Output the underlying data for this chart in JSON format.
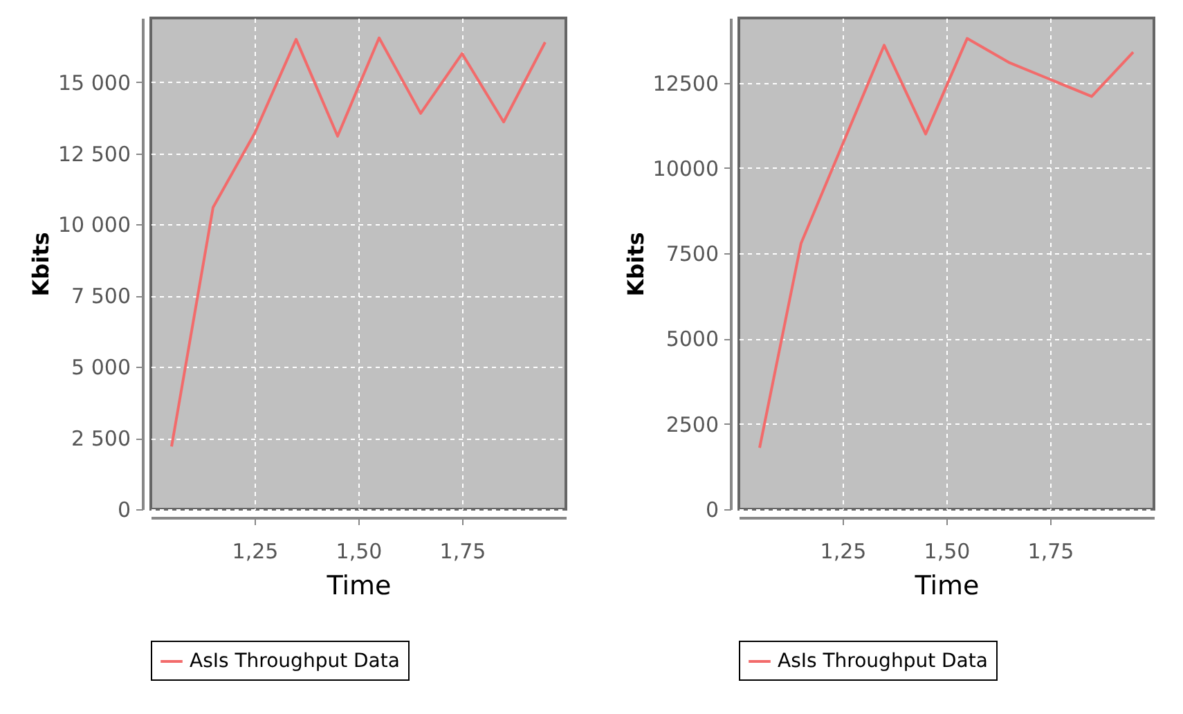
{
  "chart_data": [
    {
      "type": "line",
      "xlabel": "Time",
      "ylabel": "Kbits",
      "x": [
        1.05,
        1.15,
        1.25,
        1.35,
        1.45,
        1.55,
        1.65,
        1.75,
        1.85,
        1.95
      ],
      "series": [
        {
          "name": "AsIs Throughput Data",
          "color": "#f26b6b",
          "values": [
            2200,
            10600,
            13200,
            16500,
            13100,
            16550,
            13900,
            16000,
            13600,
            16400
          ]
        }
      ],
      "xlim": [
        1.0,
        2.0
      ],
      "xticks": [
        {
          "value": 1.25,
          "label": "1,25"
        },
        {
          "value": 1.5,
          "label": "1,50"
        },
        {
          "value": 1.75,
          "label": "1,75"
        }
      ],
      "ylim": [
        0,
        17250
      ],
      "yticks": [
        {
          "value": 0,
          "label": "0"
        },
        {
          "value": 2500,
          "label": "2 500"
        },
        {
          "value": 5000,
          "label": "5 000"
        },
        {
          "value": 7500,
          "label": "7 500"
        },
        {
          "value": 10000,
          "label": "10 000"
        },
        {
          "value": 12500,
          "label": "12 500"
        },
        {
          "value": 15000,
          "label": "15 000"
        }
      ],
      "grid": true,
      "legend": "bottom",
      "marker": "none",
      "line_style": "solid"
    },
    {
      "type": "line",
      "xlabel": "Time",
      "ylabel": "Kbits",
      "x": [
        1.05,
        1.15,
        1.25,
        1.35,
        1.45,
        1.55,
        1.65,
        1.75,
        1.85,
        1.95
      ],
      "series": [
        {
          "name": "AsIs Throughput Data",
          "color": "#f26b6b",
          "values": [
            1800,
            7800,
            10700,
            13600,
            11000,
            13800,
            13100,
            12600,
            12100,
            13400
          ]
        }
      ],
      "xlim": [
        1.0,
        2.0
      ],
      "xticks": [
        {
          "value": 1.25,
          "label": "1,25"
        },
        {
          "value": 1.5,
          "label": "1,50"
        },
        {
          "value": 1.75,
          "label": "1,75"
        }
      ],
      "ylim": [
        0,
        14400
      ],
      "yticks": [
        0,
        2500,
        5000,
        7500,
        10000,
        12500
      ],
      "grid": true,
      "legend": "bottom",
      "marker": "none",
      "line_style": "solid"
    }
  ]
}
